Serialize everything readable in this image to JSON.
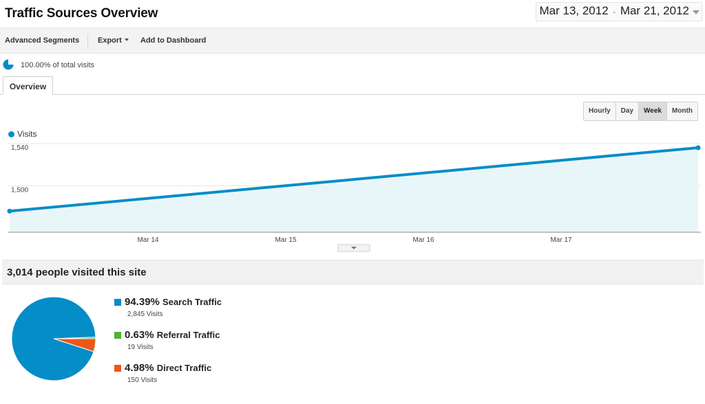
{
  "header": {
    "title": "Traffic Sources Overview",
    "date_start": "Mar 13, 2012",
    "date_sep": "-",
    "date_end": "Mar 21, 2012"
  },
  "toolbar": {
    "advanced_segments": "Advanced Segments",
    "export": "Export",
    "add_to_dashboard": "Add to Dashboard"
  },
  "segment": {
    "percent_text": "100.00% of total visits",
    "icon": "pie-icon"
  },
  "tabs": [
    {
      "label": "Overview",
      "active": true
    }
  ],
  "range_buttons": [
    {
      "label": "Hourly",
      "active": false
    },
    {
      "label": "Day",
      "active": false
    },
    {
      "label": "Week",
      "active": true
    },
    {
      "label": "Month",
      "active": false
    }
  ],
  "chart_data": {
    "type": "area",
    "series": [
      {
        "name": "Visits",
        "color": "#058dc7",
        "x": [
          "Mar 13, 2012",
          "Mar 21, 2012"
        ],
        "values": [
          1480,
          1540
        ]
      }
    ],
    "y_ticks": [
      "1,540",
      "1,500"
    ],
    "y_tick_values": [
      1540,
      1500
    ],
    "ylim": [
      1460,
      1540
    ],
    "x_tick_labels": [
      "Mar 14",
      "Mar 15",
      "Mar 16",
      "Mar 17"
    ],
    "grid": true
  },
  "summary": {
    "text": "3,014 people visited this site"
  },
  "traffic_sources": {
    "type": "pie",
    "items": [
      {
        "percent": "94.39%",
        "percent_value": 94.39,
        "label": "Search Traffic",
        "visits": "2,845 Visits",
        "color": "#058dc7"
      },
      {
        "percent": "0.63%",
        "percent_value": 0.63,
        "label": "Referral Traffic",
        "visits": "19 Visits",
        "color": "#50b432"
      },
      {
        "percent": "4.98%",
        "percent_value": 4.98,
        "label": "Direct Traffic",
        "visits": "150 Visits",
        "color": "#ed561b"
      }
    ]
  },
  "colors": {
    "accent": "#058dc7",
    "referral": "#50b432",
    "direct": "#ed561b",
    "area_fill": "#e9f6f9"
  }
}
